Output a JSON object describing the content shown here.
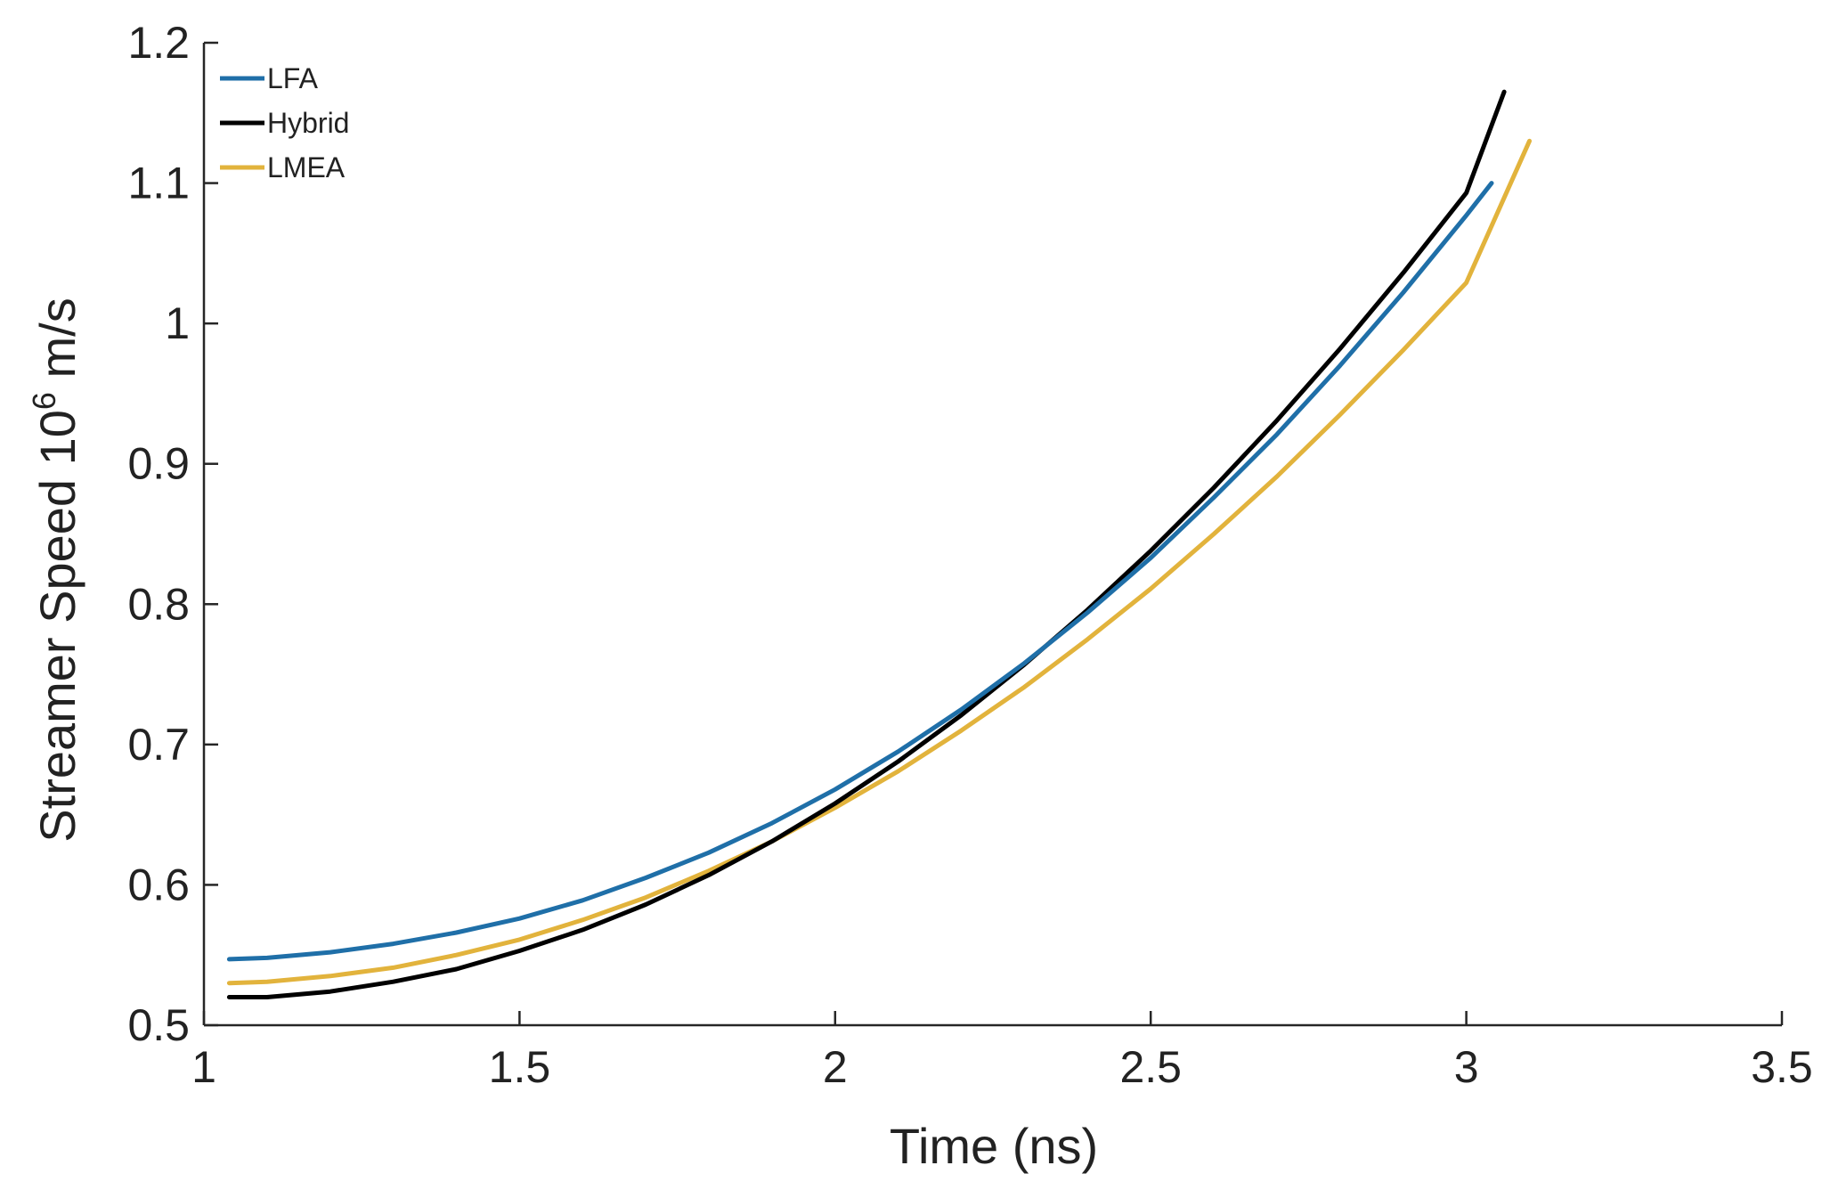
{
  "chart_data": {
    "type": "line",
    "title": "",
    "xlabel": "Time (ns)",
    "ylabel_main": "Streamer Speed 10",
    "ylabel_exp": "6",
    "ylabel_unit": " m/s",
    "xlim": [
      1,
      3.5
    ],
    "ylim": [
      0.5,
      1.2
    ],
    "xticks": [
      1,
      1.5,
      2,
      2.5,
      3,
      3.5
    ],
    "xtick_labels": [
      "1",
      "1.5",
      "2",
      "2.5",
      "3",
      "3.5"
    ],
    "yticks": [
      0.5,
      0.6,
      0.7,
      0.8,
      0.9,
      1.0,
      1.1,
      1.2
    ],
    "ytick_labels": [
      "0.5",
      "0.6",
      "0.7",
      "0.8",
      "0.9",
      "1",
      "1.1",
      "1.2"
    ],
    "grid": false,
    "legend_position": "top-left",
    "series": [
      {
        "name": "LFA",
        "color": "#1f6fa8",
        "x": [
          1.04,
          1.1,
          1.2,
          1.3,
          1.4,
          1.5,
          1.6,
          1.7,
          1.8,
          1.9,
          2.0,
          2.1,
          2.2,
          2.3,
          2.4,
          2.5,
          2.6,
          2.7,
          2.8,
          2.9,
          3.0,
          3.04
        ],
        "y": [
          0.547,
          0.548,
          0.552,
          0.558,
          0.566,
          0.576,
          0.589,
          0.605,
          0.623,
          0.644,
          0.668,
          0.695,
          0.725,
          0.758,
          0.794,
          0.833,
          0.876,
          0.921,
          0.97,
          1.022,
          1.077,
          1.1
        ]
      },
      {
        "name": "Hybrid",
        "color": "#000000",
        "x": [
          1.04,
          1.1,
          1.2,
          1.3,
          1.4,
          1.5,
          1.6,
          1.7,
          1.8,
          1.9,
          2.0,
          2.1,
          2.2,
          2.3,
          2.4,
          2.5,
          2.6,
          2.7,
          2.8,
          2.9,
          3.0,
          3.06
        ],
        "y": [
          0.52,
          0.52,
          0.524,
          0.531,
          0.54,
          0.553,
          0.568,
          0.586,
          0.607,
          0.631,
          0.658,
          0.688,
          0.721,
          0.757,
          0.796,
          0.838,
          0.883,
          0.931,
          0.982,
          1.036,
          1.093,
          1.165
        ]
      },
      {
        "name": "LMEA",
        "color": "#e2b33c",
        "x": [
          1.04,
          1.1,
          1.2,
          1.3,
          1.4,
          1.5,
          1.6,
          1.7,
          1.8,
          1.9,
          2.0,
          2.1,
          2.2,
          2.3,
          2.4,
          2.5,
          2.6,
          2.7,
          2.8,
          2.9,
          3.0,
          3.1
        ],
        "y": [
          0.53,
          0.531,
          0.535,
          0.541,
          0.55,
          0.561,
          0.575,
          0.591,
          0.61,
          0.631,
          0.655,
          0.681,
          0.71,
          0.741,
          0.775,
          0.811,
          0.85,
          0.891,
          0.935,
          0.981,
          1.029,
          1.13
        ]
      }
    ]
  }
}
